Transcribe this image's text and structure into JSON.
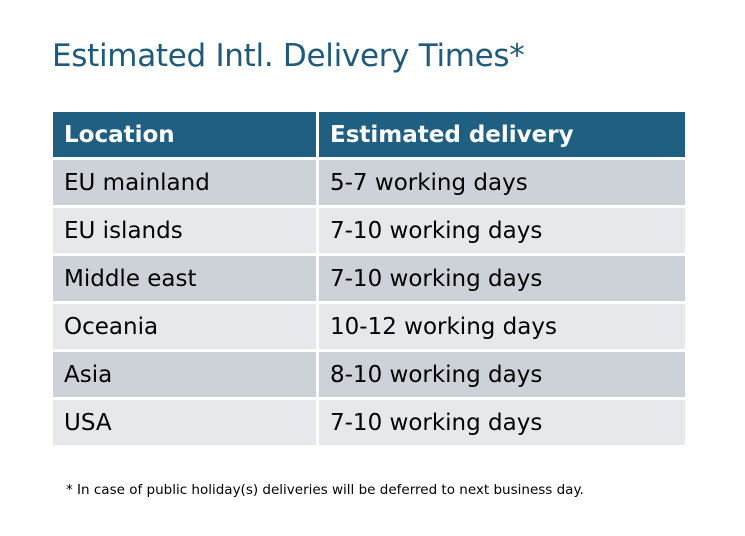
{
  "title": "Estimated Intl. Delivery Times*",
  "table": {
    "headers": [
      "Location",
      "Estimated delivery"
    ],
    "rows": [
      [
        "EU mainland",
        "5-7 working days"
      ],
      [
        "EU islands",
        "7-10 working days"
      ],
      [
        "Middle east",
        "7-10 working days"
      ],
      [
        "Oceania",
        "10-12 working days"
      ],
      [
        "Asia",
        "8-10 working days"
      ],
      [
        "USA",
        "7-10 working days"
      ]
    ]
  },
  "footnote": "* In case of public holiday(s) deliveries will be deferred to next business day.",
  "colors": {
    "header": "#1f5f82",
    "row_dark": "#cdd1d8",
    "row_light": "#e6e8eb",
    "title": "#1f5a7c"
  }
}
